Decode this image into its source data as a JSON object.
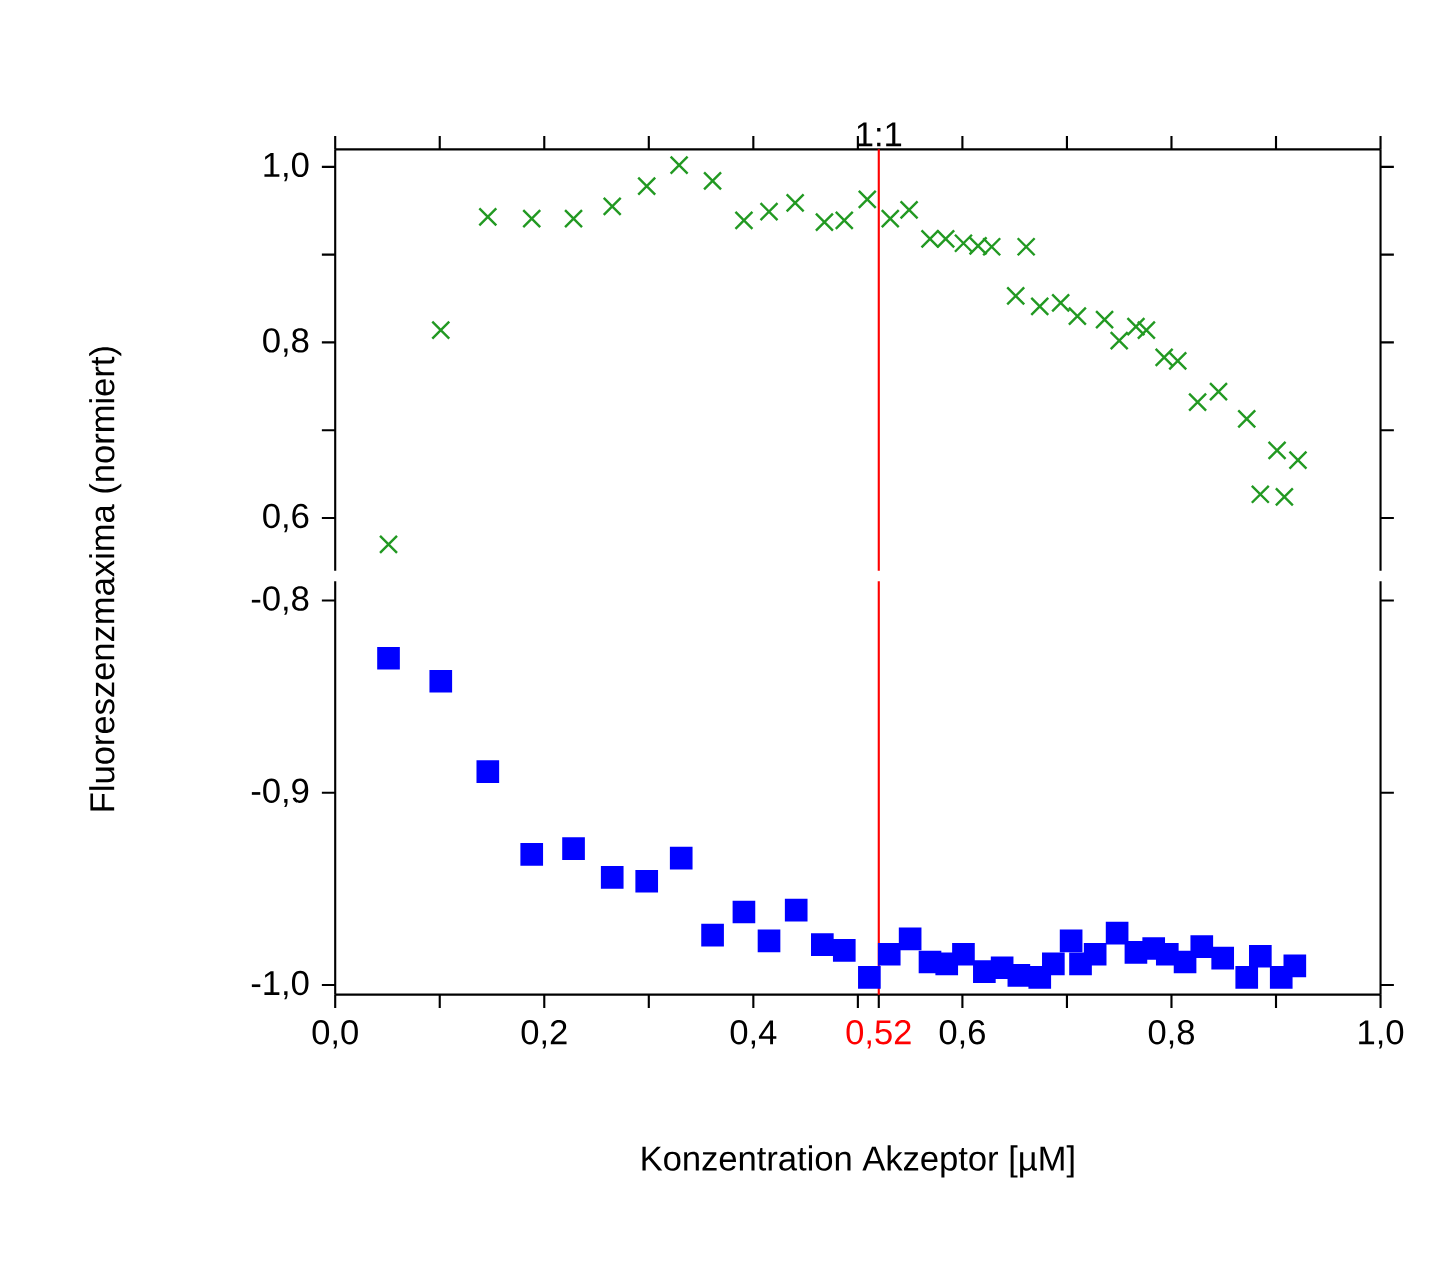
{
  "chart_data": [
    {
      "type": "scatter",
      "ylabel": "Fluoreszenzmaxima (normiert)",
      "marker": "cross",
      "tick_labels": "y",
      "x": [
        0.051,
        0.101,
        0.146,
        0.188,
        0.228,
        0.265,
        0.298,
        0.329,
        0.361,
        0.391,
        0.415,
        0.44,
        0.468,
        0.487,
        0.509,
        0.531,
        0.549,
        0.569,
        0.584,
        0.601,
        0.615,
        0.628,
        0.661,
        0.651,
        0.674,
        0.694,
        0.71,
        0.736,
        0.75,
        0.766,
        0.776,
        0.793,
        0.806,
        0.825,
        0.845,
        0.872,
        0.885,
        0.901,
        0.908,
        0.921
      ],
      "series": [
        {
          "color": "#229922",
          "values": [
            0.57,
            0.814,
            0.943,
            0.941,
            0.941,
            0.955,
            0.978,
            1.002,
            0.984,
            0.939,
            0.949,
            0.959,
            0.937,
            0.939,
            0.963,
            0.941,
            0.951,
            0.918,
            0.918,
            0.913,
            0.91,
            0.909,
            0.909,
            0.853,
            0.841,
            0.845,
            0.83,
            0.826,
            0.802,
            0.818,
            0.814,
            0.783,
            0.779,
            0.732,
            0.744,
            0.713,
            0.627,
            0.677,
            0.624,
            0.666
          ]
        }
      ],
      "xlim": [
        0,
        1
      ],
      "ylim": [
        0.54,
        1.02
      ],
      "xticks": [
        {
          "value": 0,
          "label": null
        },
        {
          "value": 0.1,
          "label": null
        },
        {
          "value": 0.2,
          "label": null
        },
        {
          "value": 0.3,
          "label": null
        },
        {
          "value": 0.4,
          "label": null
        },
        {
          "value": 0.5,
          "label": null
        },
        {
          "value": 0.6,
          "label": null
        },
        {
          "value": 0.7,
          "label": null
        },
        {
          "value": 0.8,
          "label": null
        },
        {
          "value": 0.9,
          "label": null
        },
        {
          "value": 1,
          "label": null
        }
      ],
      "yticks": [
        {
          "value": 0.6,
          "label": "0,6"
        },
        {
          "value": 0.7,
          "label": null
        },
        {
          "value": 0.8,
          "label": "0,8"
        },
        {
          "value": 0.9,
          "label": null
        },
        {
          "value": 1,
          "label": "1,0"
        }
      ],
      "ref_lines": [
        {
          "axis": "x",
          "value": 0.52,
          "label": "1:1",
          "color": "#ff0000"
        }
      ]
    },
    {
      "type": "scatter",
      "xlabel": "Konzentration Akzeptor [µM]",
      "marker": "square",
      "x": [
        0.051,
        0.101,
        0.146,
        0.188,
        0.228,
        0.265,
        0.298,
        0.331,
        0.361,
        0.391,
        0.415,
        0.441,
        0.466,
        0.487,
        0.511,
        0.53,
        0.55,
        0.569,
        0.585,
        0.601,
        0.621,
        0.638,
        0.654,
        0.674,
        0.687,
        0.704,
        0.713,
        0.727,
        0.748,
        0.766,
        0.783,
        0.796,
        0.813,
        0.829,
        0.849,
        0.872,
        0.885,
        0.905,
        0.918
      ],
      "series": [
        {
          "color": "#0000ff",
          "values": [
            -0.83,
            -0.842,
            -0.889,
            -0.932,
            -0.929,
            -0.944,
            -0.946,
            -0.934,
            -0.974,
            -0.962,
            -0.977,
            -0.961,
            -0.979,
            -0.982,
            -0.996,
            -0.984,
            -0.976,
            -0.988,
            -0.989,
            -0.984,
            -0.993,
            -0.991,
            -0.995,
            -0.996,
            -0.989,
            -0.977,
            -0.989,
            -0.984,
            -0.973,
            -0.983,
            -0.981,
            -0.984,
            -0.988,
            -0.98,
            -0.986,
            -0.996,
            -0.985,
            -0.996,
            -0.99
          ]
        }
      ],
      "xlim": [
        0,
        1
      ],
      "ylim": [
        -1.005,
        -0.79
      ],
      "xticks": [
        {
          "value": 0,
          "label": "0,0"
        },
        {
          "value": 0.1,
          "label": null
        },
        {
          "value": 0.2,
          "label": "0,2"
        },
        {
          "value": 0.3,
          "label": null
        },
        {
          "value": 0.4,
          "label": "0,4"
        },
        {
          "value": 0.5,
          "label": null
        },
        {
          "value": 0.52,
          "label": "0,52"
        },
        {
          "value": 0.6,
          "label": "0,6"
        },
        {
          "value": 0.7,
          "label": null
        },
        {
          "value": 0.8,
          "label": "0,8"
        },
        {
          "value": 0.9,
          "label": null
        },
        {
          "value": 1,
          "label": "1,0"
        }
      ],
      "yticks": [
        {
          "value": -1,
          "label": "-1,0"
        },
        {
          "value": -0.9,
          "label": "-0,9"
        },
        {
          "value": -0.8,
          "label": "-0,8"
        }
      ],
      "ref_lines": [
        {
          "axis": "x",
          "value": 0.52,
          "color": "#ff0000"
        }
      ]
    }
  ]
}
